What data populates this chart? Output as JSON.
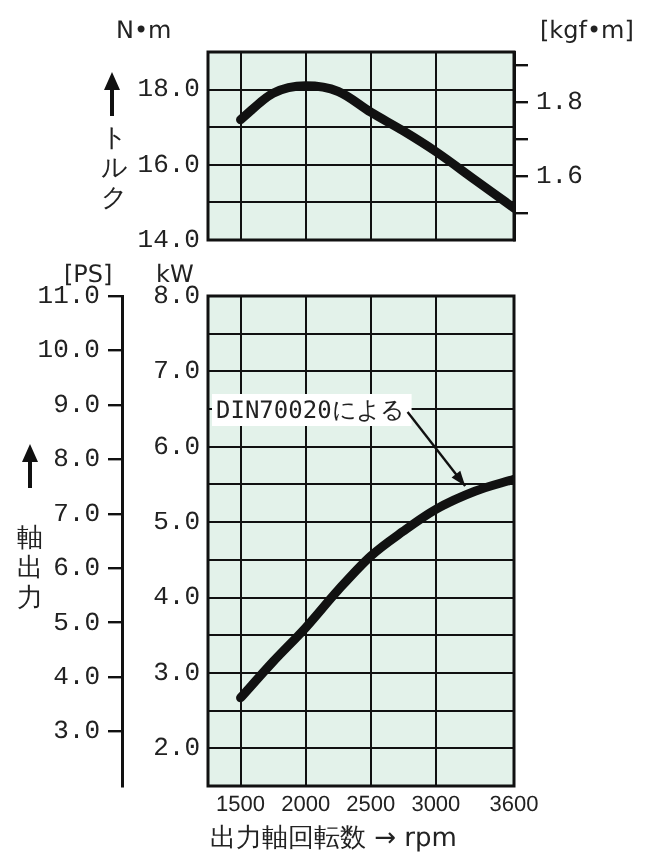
{
  "chart_data": [
    {
      "type": "line",
      "ylabel": "N•m",
      "y2label": "[kgf•m]",
      "annotations": [
        "トルク"
      ],
      "x": [
        1500,
        1750,
        2000,
        2250,
        2500,
        2750,
        3000,
        3300,
        3600
      ],
      "series": [
        {
          "color": "#111111",
          "values": [
            17.2,
            17.9,
            18.1,
            17.95,
            17.4,
            16.9,
            16.35,
            15.6,
            14.85
          ]
        }
      ],
      "xlim": [
        1250,
        3600
      ],
      "xticks": [
        1500,
        2000,
        2500,
        3000,
        3600
      ],
      "ylim": [
        14,
        19
      ],
      "yticks": [
        {
          "value": 14,
          "label": "14.0"
        },
        {
          "value": 15,
          "label": null
        },
        {
          "value": 16,
          "label": "16.0"
        },
        {
          "value": 17,
          "label": null
        },
        {
          "value": 18,
          "label": "18.0"
        }
      ],
      "y2lim": [
        1.428,
        1.937
      ],
      "y2ticks": [
        {
          "value": 1.5,
          "label": null
        },
        1.6,
        {
          "value": 1.7,
          "label": null
        },
        1.8,
        {
          "value": 1.9,
          "label": null
        }
      ],
      "grid": true,
      "marker": "none",
      "tick_labels": "y"
    },
    {
      "type": "line",
      "xlabel": "出力軸回転数 → rpm",
      "ylabel": "kW",
      "y2label": "[PS]",
      "annotations": [
        "軸出力",
        {
          "text": "DIN70020による",
          "x": 3225,
          "y": 5.4
        }
      ],
      "x": [
        1500,
        1750,
        2000,
        2250,
        2500,
        2750,
        3000,
        3300,
        3600
      ],
      "series": [
        {
          "color": "#111111",
          "values": [
            2.67,
            3.15,
            3.6,
            4.1,
            4.55,
            4.88,
            5.17,
            5.41,
            5.57
          ]
        }
      ],
      "xlim": [
        1250,
        3600
      ],
      "xticks": [
        1500,
        2000,
        2500,
        3000,
        3600
      ],
      "ylim": [
        1.5,
        8
      ],
      "yticks": [
        {
          "value": 1.5,
          "label": null
        },
        {
          "value": 2,
          "label": "2.0"
        },
        {
          "value": 2.5,
          "label": null
        },
        {
          "value": 3,
          "label": "3.0"
        },
        {
          "value": 3.5,
          "label": null
        },
        {
          "value": 4,
          "label": "4.0"
        },
        {
          "value": 4.5,
          "label": null
        },
        {
          "value": 5,
          "label": "5.0"
        },
        {
          "value": 5.5,
          "label": null
        },
        {
          "value": 6,
          "label": "6.0"
        },
        {
          "value": 6.5,
          "label": null
        },
        {
          "value": 7,
          "label": "7.0"
        },
        {
          "value": 7.5,
          "label": null
        },
        {
          "value": 8,
          "label": "8.0"
        }
      ],
      "y2lim": [
        2,
        11
      ],
      "y2ticks": [
        {
          "value": 3,
          "label": "3.0"
        },
        {
          "value": 4,
          "label": "4.0"
        },
        {
          "value": 5,
          "label": "5.0"
        },
        {
          "value": 6,
          "label": "6.0"
        },
        {
          "value": 7,
          "label": "7.0"
        },
        {
          "value": 8,
          "label": "8.0"
        },
        {
          "value": 9,
          "label": "9.0"
        },
        {
          "value": 10,
          "label": "10.0"
        },
        {
          "value": 11,
          "label": "11.0"
        }
      ],
      "grid": true,
      "marker": "none"
    }
  ]
}
